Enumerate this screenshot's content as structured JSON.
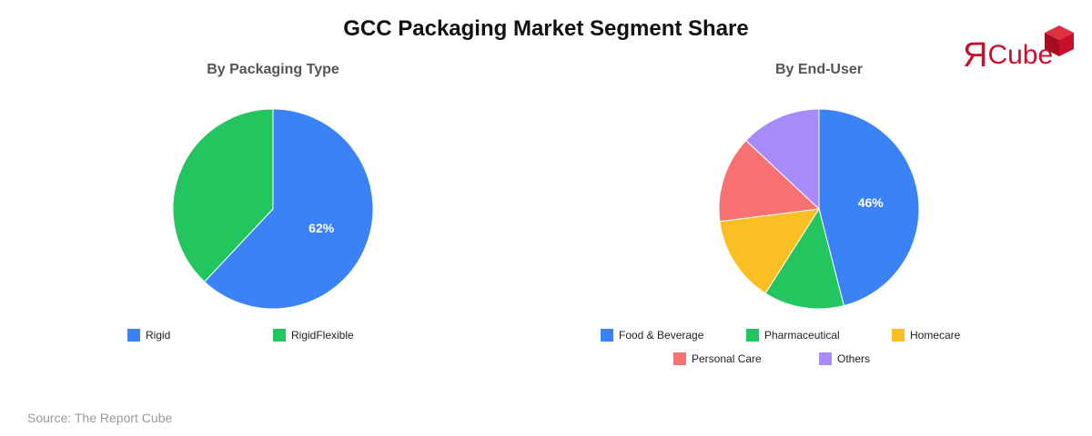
{
  "title": "GCC Packaging Market Segment Share",
  "source": "Source: The Report Cube",
  "logo": {
    "glyph": "Я",
    "text": "Cube",
    "color": "#c8102e",
    "cube_color": "#c8102e"
  },
  "chart_data": [
    {
      "type": "pie",
      "title": "By Packaging Type",
      "categories": [
        "Rigid",
        "RigidFlexible"
      ],
      "values": [
        62,
        38
      ],
      "colors": [
        "#3b82f6",
        "#22c55e"
      ],
      "data_labels": [
        "62%",
        ""
      ],
      "legend_position": "bottom"
    },
    {
      "type": "pie",
      "title": "By End-User",
      "categories": [
        "Food & Beverage",
        "Pharmaceutical",
        "Homecare",
        "Personal Care",
        "Others"
      ],
      "values": [
        46,
        13,
        14,
        14,
        13
      ],
      "colors": [
        "#3b82f6",
        "#22c55e",
        "#fbbf24",
        "#f87171",
        "#a78bfa"
      ],
      "data_labels": [
        "46%",
        "",
        "",
        "",
        ""
      ],
      "legend_position": "bottom"
    }
  ]
}
